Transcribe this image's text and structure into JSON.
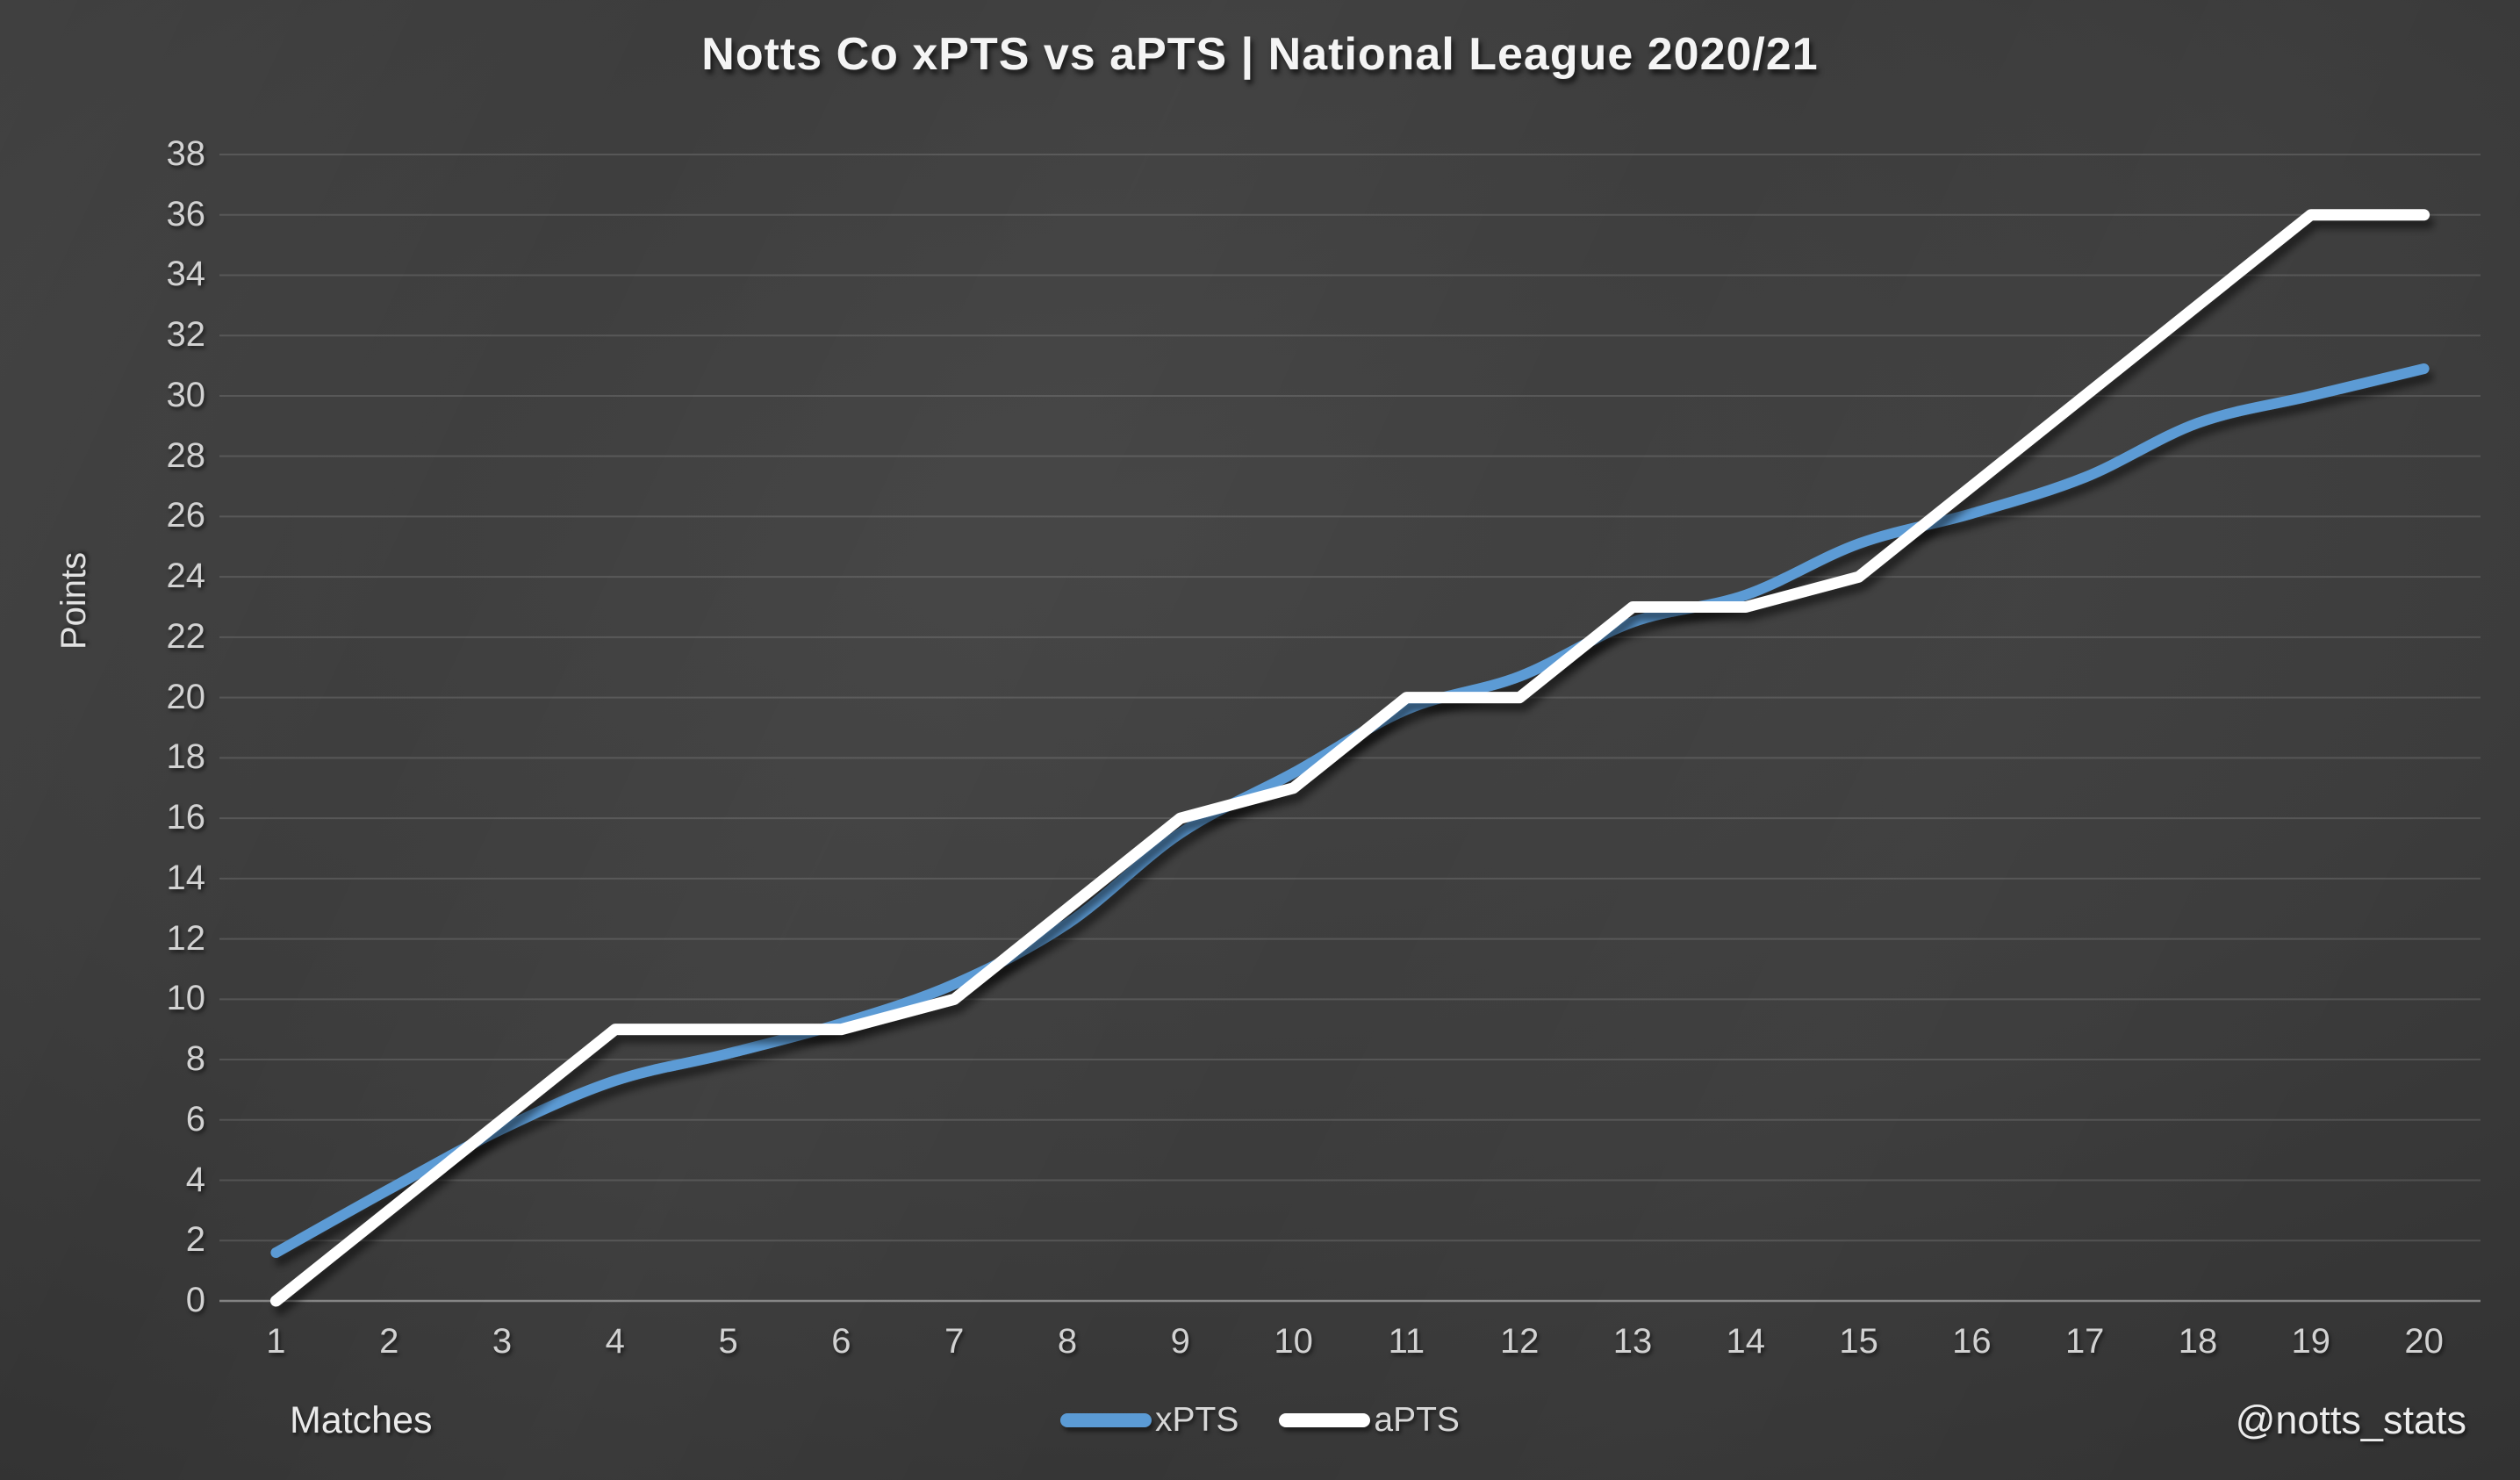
{
  "title": "Notts Co xPTS vs aPTS | National League 2020/21",
  "watermark": "@notts_stats",
  "chart_data": {
    "type": "line",
    "title": "Notts Co xPTS vs aPTS | National League 2020/21",
    "xlabel": "Matches",
    "ylabel": "Points",
    "categories": [
      1,
      2,
      3,
      4,
      5,
      6,
      7,
      8,
      9,
      10,
      11,
      12,
      13,
      14,
      15,
      16,
      17,
      18,
      19,
      20
    ],
    "series": [
      {
        "name": "xPTS",
        "color": "#5B9BD5",
        "smooth": true,
        "values": [
          1.6,
          3.7,
          5.7,
          7.3,
          8.2,
          9.2,
          10.5,
          12.5,
          15.5,
          17.5,
          19.6,
          20.7,
          22.5,
          23.4,
          25.1,
          26.1,
          27.3,
          29.1,
          30.0,
          30.9
        ]
      },
      {
        "name": "aPTS",
        "color": "#FFFFFF",
        "smooth": false,
        "values": [
          0,
          3,
          6,
          9,
          9,
          9,
          10,
          13,
          16,
          17,
          20,
          20,
          23,
          23,
          24,
          27,
          30,
          33,
          36,
          36
        ]
      }
    ],
    "ylim": [
      0,
      38
    ],
    "ytick_step": 2,
    "grid": "horizontal",
    "legend_position": "bottom-center",
    "background": "dark-radial-gradient",
    "grid_color": "rgba(255,255,255,0.13)",
    "axis_line_color": "rgba(255,255,255,0.38)",
    "tick_color": "#d2d2d2"
  }
}
